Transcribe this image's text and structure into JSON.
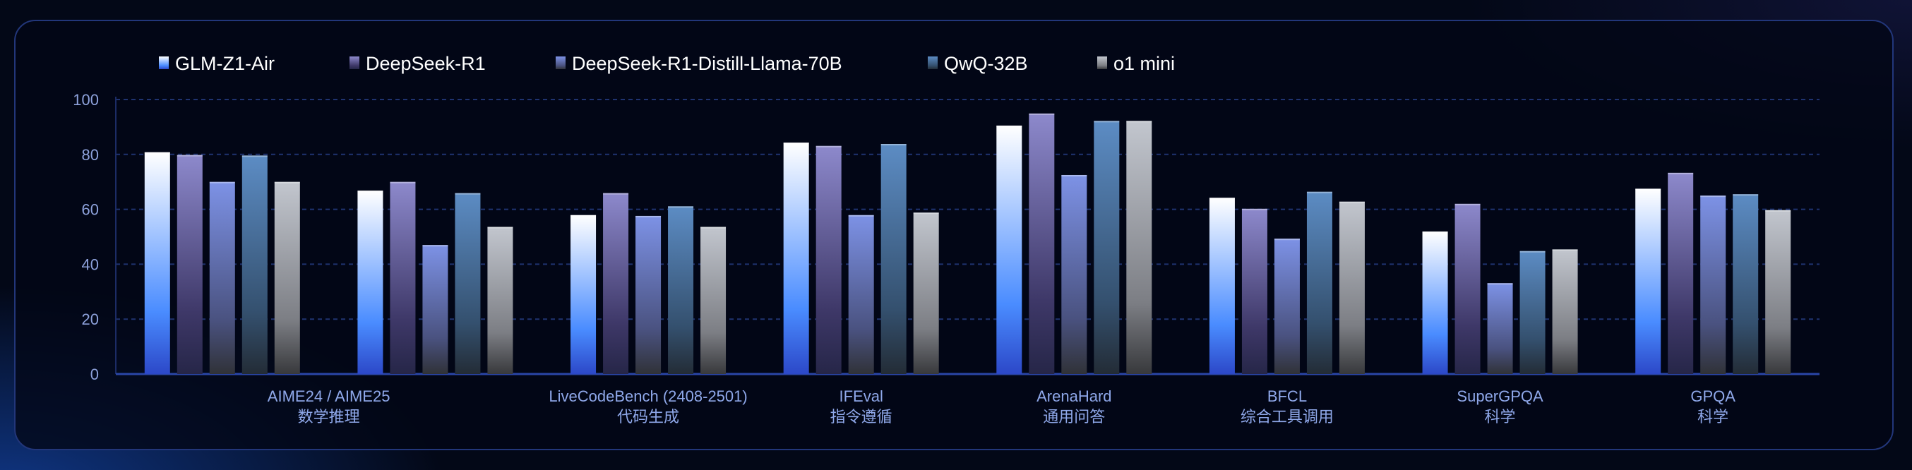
{
  "chart_data": {
    "type": "bar",
    "title": "",
    "xlabel": "",
    "ylabel": "",
    "ylim": [
      0,
      100
    ],
    "yticks": [
      0,
      20,
      40,
      60,
      80,
      100
    ],
    "grid": true,
    "legend_position": "top-left",
    "x_labels": [
      {
        "label": "AIME24 / AIME25",
        "sub": "数学推理",
        "groups": [
          0,
          1
        ]
      },
      {
        "label": "LiveCodeBench (2408-2501)",
        "sub": "代码生成",
        "groups": [
          2
        ]
      },
      {
        "label": "IFEval",
        "sub": "指令遵循",
        "groups": [
          3
        ]
      },
      {
        "label": "ArenaHard",
        "sub": "通用问答",
        "groups": [
          4
        ]
      },
      {
        "label": "BFCL",
        "sub": "综合工具调用",
        "groups": [
          5
        ]
      },
      {
        "label": "SuperGPQA",
        "sub": "科学",
        "groups": [
          6
        ]
      },
      {
        "label": "GPQA",
        "sub": "科学",
        "groups": [
          7
        ]
      }
    ],
    "series": [
      {
        "name": "GLM-Z1-Air",
        "values": [
          80.8,
          66.8,
          57.9,
          84.3,
          90.5,
          64.2,
          51.9,
          67.5
        ],
        "colors": [
          "#ffffff",
          "#4a8cff",
          "#2c48c8"
        ]
      },
      {
        "name": "DeepSeek-R1",
        "values": [
          79.8,
          70.0,
          65.9,
          83.1,
          94.9,
          60.2,
          62.0,
          73.3
        ],
        "colors": [
          "#8d89cc",
          "#3e3868",
          "#262648"
        ]
      },
      {
        "name": "DeepSeek-R1-Distill-Llama-70B",
        "values": [
          70.0,
          47.0,
          57.6,
          57.9,
          72.5,
          49.3,
          33.1,
          65.0
        ],
        "colors": [
          "#7d92e6",
          "#4a5280",
          "#303238"
        ]
      },
      {
        "name": "QwQ-32B",
        "values": [
          79.6,
          65.9,
          61.1,
          83.8,
          92.2,
          66.4,
          44.8,
          65.5
        ],
        "colors": [
          "#5c8cc4",
          "#34506e",
          "#232c36"
        ]
      },
      {
        "name": "o1 mini",
        "values": [
          70.0,
          53.6,
          53.6,
          58.8,
          92.2,
          62.8,
          45.4,
          59.7
        ],
        "colors": [
          "#c2c6ce",
          "#7c7e84",
          "#38393c"
        ]
      }
    ]
  }
}
